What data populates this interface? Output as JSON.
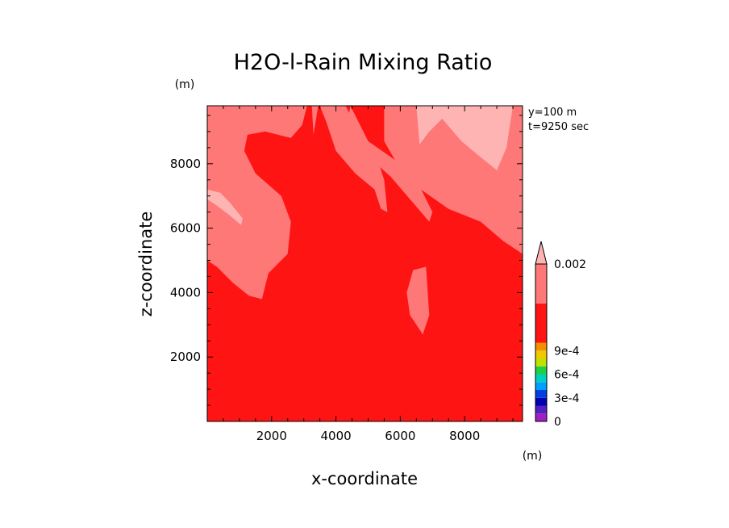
{
  "chart_data": {
    "type": "contour",
    "title": "H2O-l-Rain Mixing Ratio",
    "xlabel": "x-coordinate",
    "ylabel": "z-coordinate",
    "x_unit": "(m)",
    "y_unit": "(m)",
    "xlim": [
      0,
      9800
    ],
    "ylim": [
      0,
      9800
    ],
    "xticks": [
      2000,
      4000,
      6000,
      8000
    ],
    "yticks": [
      2000,
      4000,
      6000,
      8000
    ],
    "annotations": [
      "y=100 m",
      "t=9250 sec"
    ],
    "colorbar": {
      "labels": [
        {
          "text": "0",
          "value": 0
        },
        {
          "text": "3e-4",
          "value": 0.0003
        },
        {
          "text": "6e-4",
          "value": 0.0006
        },
        {
          "text": "9e-4",
          "value": 0.0009
        },
        {
          "text": "0.002",
          "value": 0.002
        }
      ],
      "levels": [
        {
          "color": "#a020c0",
          "value": 0
        },
        {
          "color": "#5020c0",
          "value": 0.0001
        },
        {
          "color": "#0000b0",
          "value": 0.0002
        },
        {
          "color": "#0040e0",
          "value": 0.0003
        },
        {
          "color": "#00a0ff",
          "value": 0.0004
        },
        {
          "color": "#00d0c0",
          "value": 0.0005
        },
        {
          "color": "#20d040",
          "value": 0.0006
        },
        {
          "color": "#c0e000",
          "value": 0.0007
        },
        {
          "color": "#f0c800",
          "value": 0.0008
        },
        {
          "color": "#f09000",
          "value": 0.0009
        },
        {
          "color": "#ff1414",
          "value": 0.001
        },
        {
          "color": "#ff7878",
          "value": 0.0015
        },
        {
          "color": "#ffb4b4",
          "value": 0.002
        }
      ]
    },
    "field": {
      "background_color": "#ff1414",
      "regions": [
        {
          "name": "left-upper-band",
          "color": "#ff7878",
          "points": [
            [
              0,
              9800
            ],
            [
              3100,
              9800
            ],
            [
              2950,
              9200
            ],
            [
              2600,
              8800
            ],
            [
              1800,
              9000
            ],
            [
              1250,
              8900
            ],
            [
              1150,
              8400
            ],
            [
              1500,
              7700
            ],
            [
              2300,
              7000
            ],
            [
              2600,
              6200
            ],
            [
              2500,
              5200
            ],
            [
              1900,
              4600
            ],
            [
              1700,
              3800
            ],
            [
              1300,
              3900
            ],
            [
              800,
              4300
            ],
            [
              300,
              4800
            ],
            [
              0,
              5000
            ]
          ]
        },
        {
          "name": "left-light-strip",
          "color": "#ffb4b4",
          "points": [
            [
              0,
              7200
            ],
            [
              400,
              7100
            ],
            [
              700,
              6800
            ],
            [
              1100,
              6300
            ],
            [
              1050,
              6100
            ],
            [
              700,
              6400
            ],
            [
              300,
              6700
            ],
            [
              0,
              6900
            ]
          ]
        },
        {
          "name": "top-wedge",
          "color": "#ff7878",
          "points": [
            [
              3250,
              9800
            ],
            [
              3300,
              8900
            ],
            [
              3450,
              9800
            ]
          ]
        },
        {
          "name": "finger-a",
          "color": "#ff7878",
          "points": [
            [
              3500,
              9800
            ],
            [
              4300,
              9800
            ],
            [
              4700,
              9000
            ],
            [
              5300,
              8100
            ],
            [
              5500,
              7500
            ],
            [
              5600,
              6500
            ],
            [
              5400,
              6600
            ],
            [
              5200,
              7200
            ],
            [
              4600,
              7700
            ],
            [
              4000,
              8400
            ],
            [
              3700,
              9300
            ]
          ]
        },
        {
          "name": "finger-b",
          "color": "#ff7878",
          "points": [
            [
              4450,
              9800
            ],
            [
              5000,
              8700
            ],
            [
              6000,
              8000
            ],
            [
              6600,
              7300
            ],
            [
              7000,
              6500
            ],
            [
              6900,
              6200
            ],
            [
              6300,
              6900
            ],
            [
              5700,
              7600
            ],
            [
              4800,
              8400
            ],
            [
              4350,
              9200
            ]
          ]
        },
        {
          "name": "right-upper-band",
          "color": "#ff7878",
          "points": [
            [
              5500,
              9800
            ],
            [
              9800,
              9800
            ],
            [
              9800,
              5200
            ],
            [
              9200,
              5600
            ],
            [
              8500,
              6200
            ],
            [
              7500,
              6600
            ],
            [
              6500,
              7300
            ],
            [
              5900,
              8000
            ],
            [
              5500,
              8700
            ]
          ]
        },
        {
          "name": "right-light-patch",
          "color": "#ffb4b4",
          "points": [
            [
              6500,
              9800
            ],
            [
              9500,
              9800
            ],
            [
              9300,
              8500
            ],
            [
              9000,
              7800
            ],
            [
              8500,
              8200
            ],
            [
              7900,
              8700
            ],
            [
              7300,
              9400
            ],
            [
              6900,
              9000
            ],
            [
              6600,
              8600
            ]
          ]
        },
        {
          "name": "lower-streak",
          "color": "#ff7878",
          "points": [
            [
              6400,
              4700
            ],
            [
              6800,
              4800
            ],
            [
              6900,
              3300
            ],
            [
              6700,
              2700
            ],
            [
              6300,
              3300
            ],
            [
              6200,
              4000
            ]
          ]
        }
      ]
    }
  }
}
